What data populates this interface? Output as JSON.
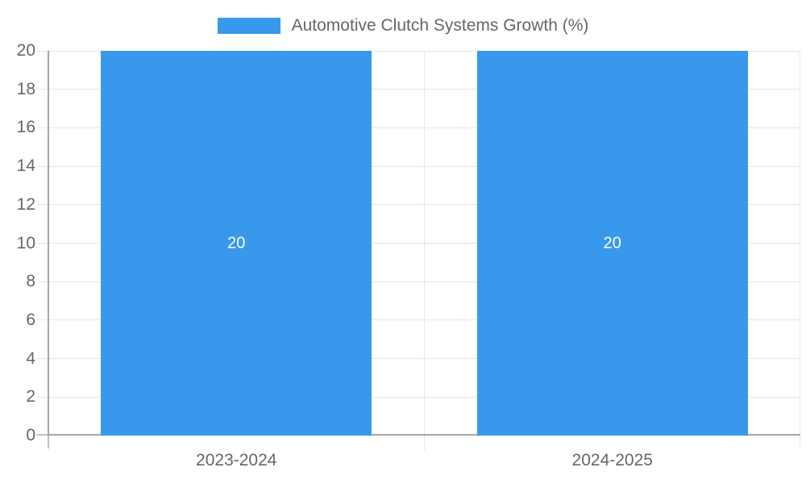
{
  "chart_data": {
    "type": "bar",
    "title": "Automotive Clutch Systems Growth (%)",
    "categories": [
      "2023-2024",
      "2024-2025"
    ],
    "values": [
      20,
      20
    ],
    "value_labels": [
      "20",
      "20"
    ],
    "ytick_values": [
      0,
      2,
      4,
      6,
      8,
      10,
      12,
      14,
      16,
      18,
      20
    ],
    "ytick_labels": [
      "0",
      "2",
      "4",
      "6",
      "8",
      "10",
      "12",
      "14",
      "16",
      "18",
      "20"
    ],
    "ylim": [
      0,
      20
    ],
    "grid": true,
    "legend_position": "top",
    "colors": {
      "bar": "#3899ec",
      "grid": "#e6e6e6",
      "axis": "#a6a6a6",
      "tick_extension": "#c2c2c2",
      "tick_text": "#666666",
      "value_label": "#ffffff"
    }
  }
}
